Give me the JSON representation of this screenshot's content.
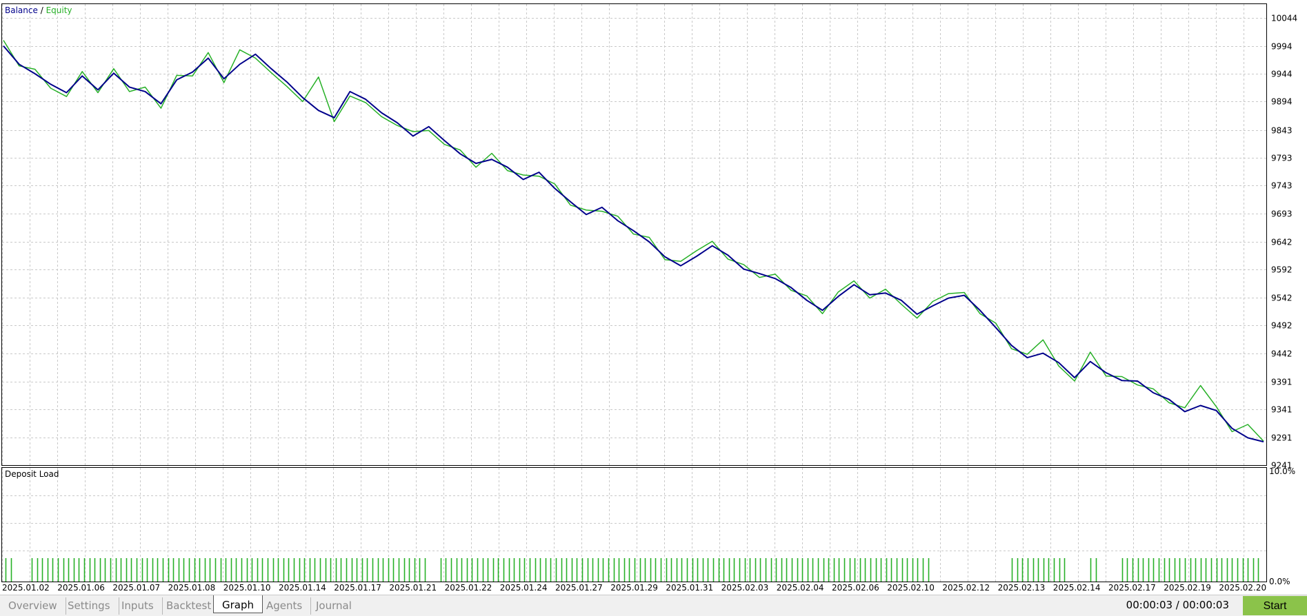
{
  "chart_data": [
    {
      "type": "line",
      "title": "",
      "legend": [
        "Balance",
        "Equity"
      ],
      "legend_separator": "/",
      "y_ticks": [
        10044,
        9994,
        9944,
        9894,
        9843,
        9793,
        9743,
        9693,
        9642,
        9592,
        9542,
        9492,
        9442,
        9391,
        9341,
        9291,
        9241
      ],
      "ylim": [
        9241,
        10069
      ],
      "x_labels": [
        "2025.01.02",
        "2025.01.06",
        "2025.01.07",
        "2025.01.08",
        "2025.01.10",
        "2025.01.14",
        "2025.01.17",
        "2025.01.21",
        "2025.01.22",
        "2025.01.24",
        "2025.01.27",
        "2025.01.29",
        "2025.01.31",
        "2025.02.03",
        "2025.02.04",
        "2025.02.06",
        "2025.02.10",
        "2025.02.12",
        "2025.02.13",
        "2025.02.14",
        "2025.02.17",
        "2025.02.19",
        "2025.02.20"
      ],
      "series": [
        {
          "name": "Balance",
          "color": "#00008b",
          "values": [
            [
              0,
              9994
            ],
            [
              1,
              9961
            ],
            [
              2,
              9944
            ],
            [
              3,
              9925
            ],
            [
              4,
              9910
            ],
            [
              5,
              9940
            ],
            [
              6,
              9915
            ],
            [
              7,
              9945
            ],
            [
              8,
              9920
            ],
            [
              9,
              9912
            ],
            [
              10,
              9890
            ],
            [
              11,
              9933
            ],
            [
              12,
              9947
            ],
            [
              13,
              9972
            ],
            [
              14,
              9935
            ],
            [
              15,
              9961
            ],
            [
              16,
              9979
            ],
            [
              17,
              9953
            ],
            [
              18,
              9929
            ],
            [
              19,
              9901
            ],
            [
              20,
              9878
            ],
            [
              21,
              9865
            ],
            [
              22,
              9912
            ],
            [
              23,
              9898
            ],
            [
              24,
              9874
            ],
            [
              25,
              9856
            ],
            [
              26,
              9832
            ],
            [
              27,
              9849
            ],
            [
              28,
              9824
            ],
            [
              29,
              9800
            ],
            [
              30,
              9783
            ],
            [
              31,
              9790
            ],
            [
              32,
              9776
            ],
            [
              33,
              9754
            ],
            [
              34,
              9767
            ],
            [
              35,
              9738
            ],
            [
              36,
              9714
            ],
            [
              37,
              9691
            ],
            [
              38,
              9704
            ],
            [
              39,
              9680
            ],
            [
              40,
              9662
            ],
            [
              41,
              9642
            ],
            [
              42,
              9615
            ],
            [
              43,
              9599
            ],
            [
              44,
              9616
            ],
            [
              45,
              9635
            ],
            [
              46,
              9618
            ],
            [
              47,
              9593
            ],
            [
              48,
              9585
            ],
            [
              49,
              9576
            ],
            [
              50,
              9560
            ],
            [
              51,
              9537
            ],
            [
              52,
              9519
            ],
            [
              53,
              9544
            ],
            [
              54,
              9565
            ],
            [
              55,
              9547
            ],
            [
              56,
              9550
            ],
            [
              57,
              9537
            ],
            [
              58,
              9512
            ],
            [
              59,
              9527
            ],
            [
              60,
              9541
            ],
            [
              61,
              9546
            ],
            [
              62,
              9519
            ],
            [
              63,
              9488
            ],
            [
              64,
              9456
            ],
            [
              65,
              9434
            ],
            [
              66,
              9442
            ],
            [
              67,
              9425
            ],
            [
              68,
              9398
            ],
            [
              69,
              9427
            ],
            [
              70,
              9407
            ],
            [
              71,
              9393
            ],
            [
              72,
              9392
            ],
            [
              73,
              9371
            ],
            [
              74,
              9359
            ],
            [
              75,
              9337
            ],
            [
              76,
              9348
            ],
            [
              77,
              9339
            ],
            [
              78,
              9307
            ],
            [
              79,
              9290
            ],
            [
              80,
              9283
            ]
          ]
        },
        {
          "name": "Equity",
          "color": "#26b026",
          "values": [
            [
              0,
              10004
            ],
            [
              1,
              9958
            ],
            [
              2,
              9952
            ],
            [
              3,
              9918
            ],
            [
              4,
              9903
            ],
            [
              5,
              9948
            ],
            [
              6,
              9910
            ],
            [
              7,
              9953
            ],
            [
              8,
              9912
            ],
            [
              9,
              9920
            ],
            [
              10,
              9882
            ],
            [
              11,
              9941
            ],
            [
              12,
              9940
            ],
            [
              13,
              9982
            ],
            [
              14,
              9928
            ],
            [
              15,
              9987
            ],
            [
              16,
              9972
            ],
            [
              17,
              9946
            ],
            [
              18,
              9921
            ],
            [
              19,
              9894
            ],
            [
              20,
              9938
            ],
            [
              21,
              9858
            ],
            [
              22,
              9904
            ],
            [
              23,
              9892
            ],
            [
              24,
              9867
            ],
            [
              25,
              9851
            ],
            [
              26,
              9840
            ],
            [
              27,
              9842
            ],
            [
              28,
              9817
            ],
            [
              29,
              9807
            ],
            [
              30,
              9776
            ],
            [
              31,
              9801
            ],
            [
              32,
              9770
            ],
            [
              33,
              9762
            ],
            [
              34,
              9760
            ],
            [
              35,
              9746
            ],
            [
              36,
              9708
            ],
            [
              37,
              9699
            ],
            [
              38,
              9697
            ],
            [
              39,
              9688
            ],
            [
              40,
              9656
            ],
            [
              41,
              9650
            ],
            [
              42,
              9610
            ],
            [
              43,
              9607
            ],
            [
              44,
              9626
            ],
            [
              45,
              9643
            ],
            [
              46,
              9611
            ],
            [
              47,
              9601
            ],
            [
              48,
              9578
            ],
            [
              49,
              9584
            ],
            [
              50,
              9555
            ],
            [
              51,
              9545
            ],
            [
              52,
              9513
            ],
            [
              53,
              9552
            ],
            [
              54,
              9572
            ],
            [
              55,
              9541
            ],
            [
              56,
              9557
            ],
            [
              57,
              9530
            ],
            [
              58,
              9505
            ],
            [
              59,
              9535
            ],
            [
              60,
              9549
            ],
            [
              61,
              9551
            ],
            [
              62,
              9513
            ],
            [
              63,
              9496
            ],
            [
              64,
              9450
            ],
            [
              65,
              9440
            ],
            [
              66,
              9466
            ],
            [
              67,
              9419
            ],
            [
              68,
              9392
            ],
            [
              69,
              9444
            ],
            [
              70,
              9401
            ],
            [
              71,
              9400
            ],
            [
              72,
              9385
            ],
            [
              73,
              9378
            ],
            [
              74,
              9353
            ],
            [
              75,
              9344
            ],
            [
              76,
              9384
            ],
            [
              77,
              9346
            ],
            [
              78,
              9301
            ],
            [
              79,
              9314
            ],
            [
              80,
              9284
            ]
          ]
        }
      ]
    },
    {
      "type": "bar",
      "title": "Deposit Load",
      "y_ticks": [
        "10.0%",
        "0.0%"
      ],
      "ylim": [
        0,
        10
      ],
      "color": "#26b026"
    }
  ],
  "tabs": [
    "Overview",
    "Settings",
    "Inputs",
    "Backtest",
    "Graph",
    "Agents",
    "Journal"
  ],
  "active_tab": "Graph",
  "timer": "00:00:03 / 00:00:03",
  "start_label": "Start"
}
